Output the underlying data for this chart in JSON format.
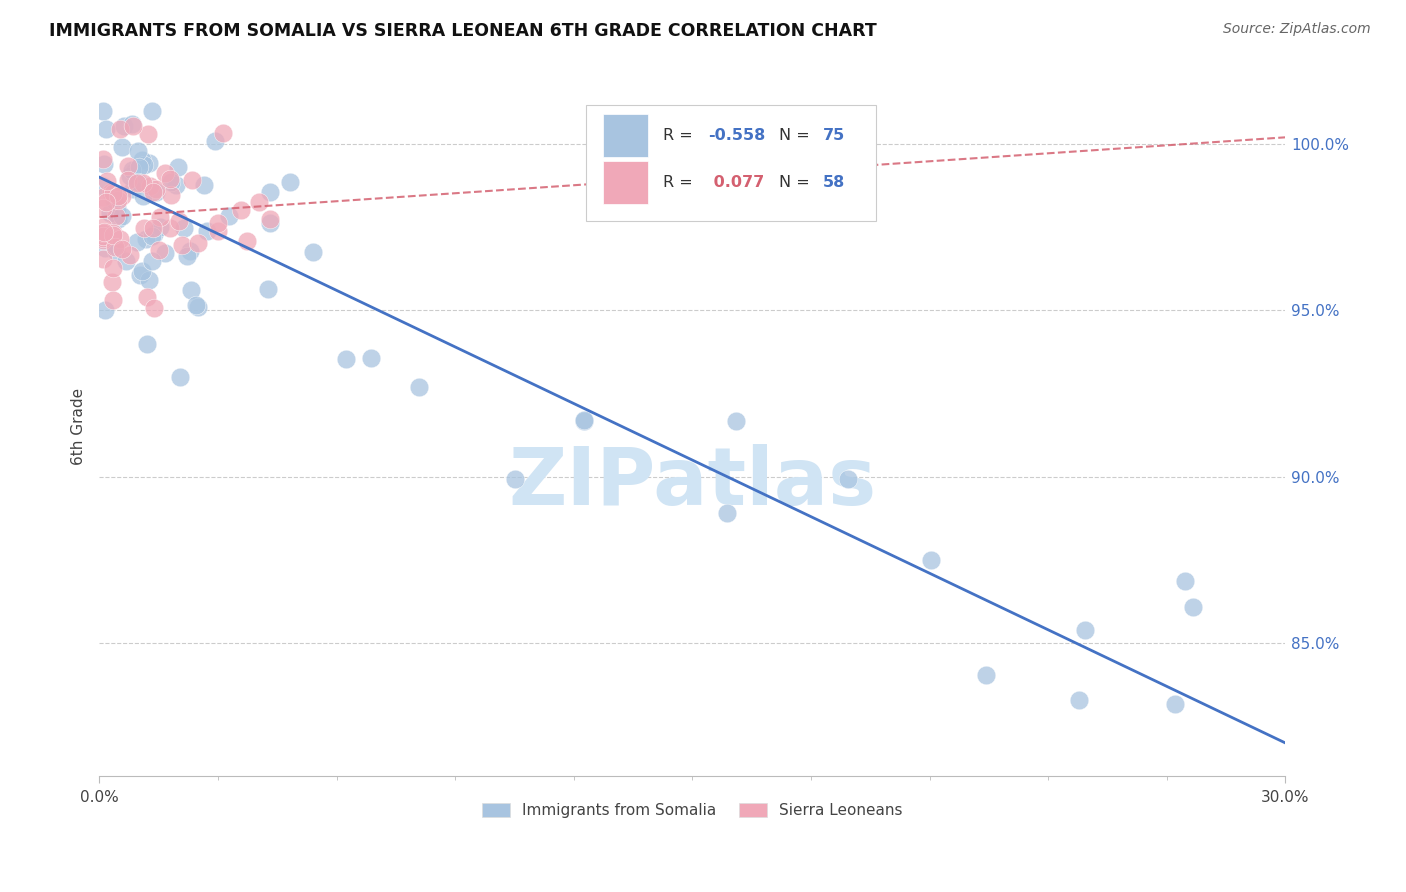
{
  "title": "IMMIGRANTS FROM SOMALIA VS SIERRA LEONEAN 6TH GRADE CORRELATION CHART",
  "source": "Source: ZipAtlas.com",
  "ylabel": "6th Grade",
  "xmin": 0.0,
  "xmax": 0.3,
  "ymin": 81.0,
  "ymax": 102.0,
  "somalia_color": "#a8c4e0",
  "sierra_color": "#f0a8b8",
  "somalia_line_color": "#4472c4",
  "sierra_line_color": "#d4607080",
  "ytick_vals": [
    85,
    90,
    95,
    100
  ],
  "ytick_labels": [
    "85.0%",
    "90.0%",
    "95.0%",
    "100.0%"
  ],
  "watermark": "ZIPatlas",
  "watermark_color": "#d0e4f4",
  "R_somalia": -0.558,
  "N_somalia": 75,
  "R_sierra": 0.077,
  "N_sierra": 58,
  "legend_R_color": "#4472c4",
  "legend_N_color": "#4472c4",
  "legend_R2_color": "#d46070",
  "somalia_line_y0": 99.0,
  "somalia_line_y1": 82.0,
  "sierra_line_y0": 97.8,
  "sierra_line_y1": 100.2
}
